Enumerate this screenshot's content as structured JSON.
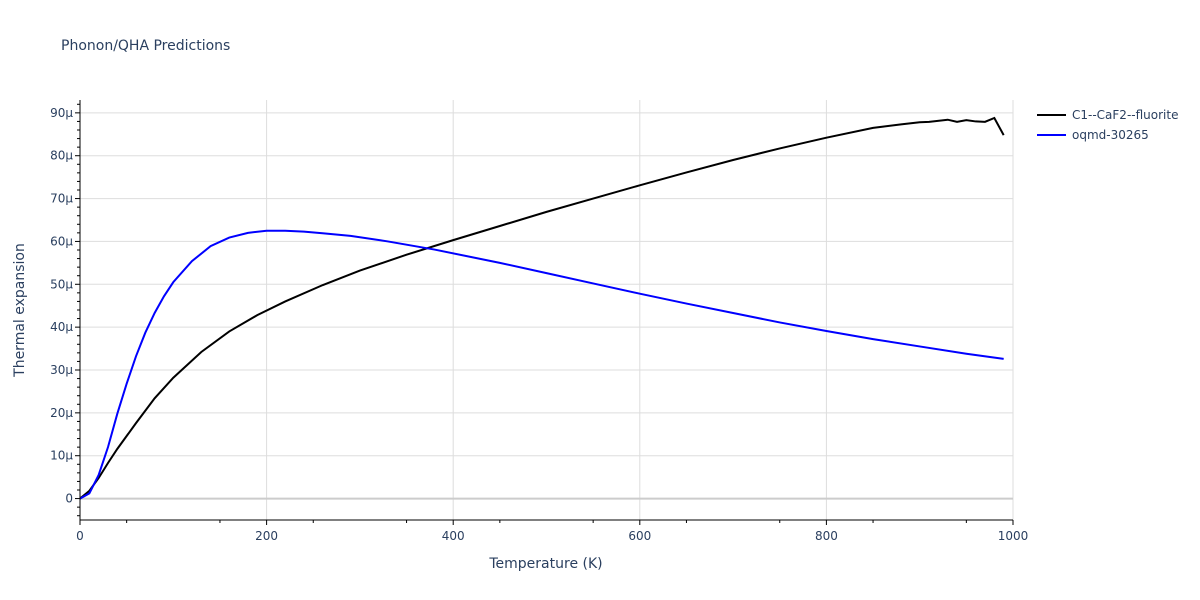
{
  "chart_data": {
    "type": "line",
    "title": "Phonon/QHA Predictions",
    "xlabel": "Temperature (K)",
    "ylabel": "Thermal expansion",
    "xlim": [
      0,
      1000
    ],
    "ylim": [
      -5,
      93
    ],
    "x_ticks": [
      0,
      200,
      400,
      600,
      800,
      1000
    ],
    "x_tick_labels": [
      "0",
      "200",
      "400",
      "600",
      "800",
      "1000"
    ],
    "y_ticks": [
      0,
      10,
      20,
      30,
      40,
      50,
      60,
      70,
      80,
      90
    ],
    "y_tick_labels": [
      "0",
      "10μ",
      "20μ",
      "30μ",
      "40μ",
      "50μ",
      "60μ",
      "70μ",
      "80μ",
      "90μ"
    ],
    "y_unit_note": "values in units of 1e-6 (μ)",
    "grid": true,
    "legend_position": "top-right",
    "series": [
      {
        "name": "C1--CaF2--fluorite",
        "color": "#000000",
        "x": [
          0,
          10,
          20,
          30,
          40,
          60,
          80,
          100,
          130,
          160,
          190,
          220,
          260,
          300,
          350,
          400,
          450,
          500,
          550,
          600,
          650,
          700,
          750,
          800,
          850,
          880,
          900,
          910,
          930,
          940,
          950,
          960,
          970,
          980,
          990
        ],
        "y": [
          0,
          1.8,
          4.8,
          8.3,
          11.6,
          17.6,
          23.4,
          28.2,
          34.2,
          39.0,
          42.8,
          46.0,
          49.8,
          53.2,
          56.9,
          60.3,
          63.6,
          66.9,
          70.0,
          73.1,
          76.1,
          79.0,
          81.7,
          84.2,
          86.5,
          87.3,
          87.8,
          87.9,
          88.4,
          87.9,
          88.3,
          88.0,
          87.9,
          88.8,
          84.8
        ]
      },
      {
        "name": "oqmd-30265",
        "color": "#0000ff",
        "x": [
          0,
          10,
          20,
          30,
          40,
          50,
          60,
          70,
          80,
          90,
          100,
          120,
          140,
          160,
          180,
          200,
          220,
          240,
          260,
          290,
          330,
          380,
          450,
          500,
          550,
          600,
          650,
          700,
          750,
          800,
          850,
          900,
          950,
          990
        ],
        "y": [
          0,
          1.2,
          5.5,
          12.0,
          19.8,
          26.8,
          33.2,
          38.7,
          43.3,
          47.2,
          50.5,
          55.4,
          58.9,
          60.9,
          62.0,
          62.5,
          62.5,
          62.3,
          61.9,
          61.3,
          60.0,
          58.1,
          55.0,
          52.6,
          50.2,
          47.8,
          45.5,
          43.3,
          41.1,
          39.1,
          37.2,
          35.5,
          33.8,
          32.6
        ]
      }
    ]
  }
}
